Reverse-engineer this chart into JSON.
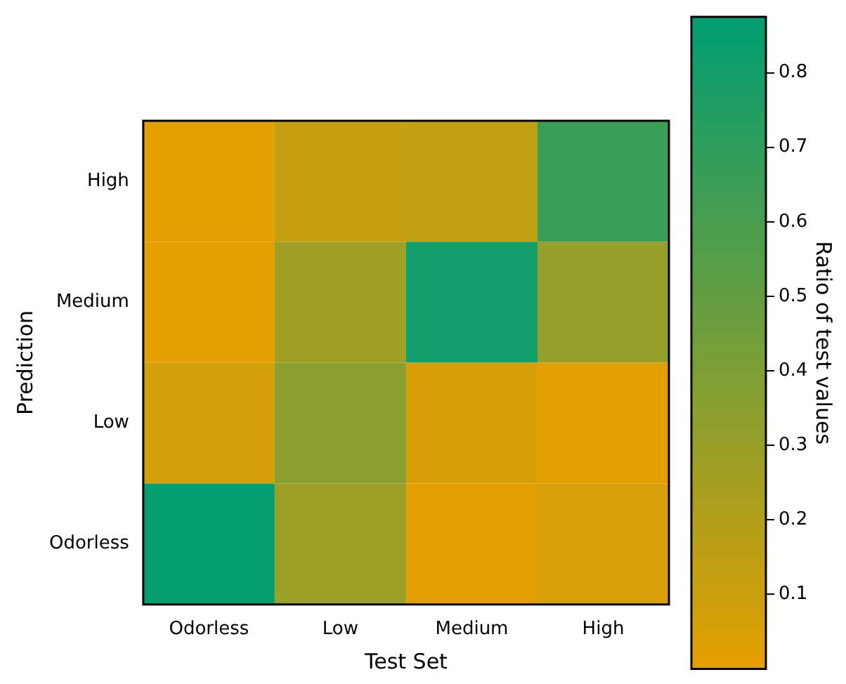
{
  "chart_data": {
    "type": "heatmap",
    "xlabel": "Test Set",
    "ylabel": "Prediction",
    "clabel": "Ratio of test values",
    "categories": [
      "Odorless",
      "Low",
      "Medium",
      "High"
    ],
    "y_categories": [
      "High",
      "Medium",
      "Low",
      "Odorless"
    ],
    "cells": [
      [
        0.0,
        0.12,
        0.14,
        0.66
      ],
      [
        0.0,
        0.27,
        0.81,
        0.31
      ],
      [
        0.07,
        0.35,
        0.06,
        0.01
      ],
      [
        0.86,
        0.29,
        0.01,
        0.05
      ]
    ],
    "clim": [
      0,
      0.875
    ],
    "cticks": [
      0.1,
      0.2,
      0.3,
      0.4,
      0.5,
      0.6,
      0.7,
      0.8
    ],
    "grid": false
  }
}
